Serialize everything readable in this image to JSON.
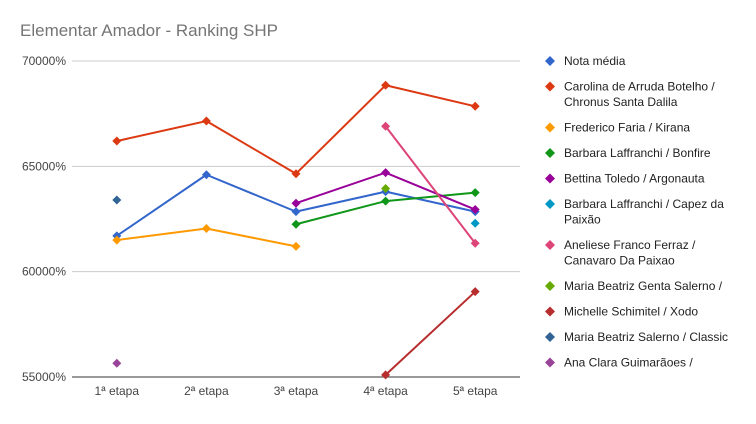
{
  "chart_data": {
    "type": "line",
    "title": "Elementar Amador - Ranking SHP",
    "xlabel": "",
    "ylabel": "",
    "categories": [
      "1ª etapa",
      "2ª etapa",
      "3ª etapa",
      "4ª etapa",
      "5ª etapa"
    ],
    "ylim": [
      55000,
      70000
    ],
    "yticks": [
      {
        "value": 70000,
        "label": "70000%"
      },
      {
        "value": 65000,
        "label": "65000%"
      },
      {
        "value": 60000,
        "label": "60000%"
      },
      {
        "value": 55000,
        "label": "55000%"
      }
    ],
    "grid": true,
    "legend_position": "right",
    "series": [
      {
        "name": "Nota média",
        "color": "#3366cc",
        "values": [
          61700,
          64600,
          62850,
          63800,
          62850
        ]
      },
      {
        "name": "Carolina de Arruda Botelho / Chronus Santa Dalila",
        "color": "#dc3912",
        "values": [
          66200,
          67150,
          64650,
          68850,
          67850
        ]
      },
      {
        "name": "Frederico Faria / Kirana",
        "color": "#ff9900",
        "values": [
          61500,
          62050,
          61200,
          null,
          null
        ]
      },
      {
        "name": "Barbara Laffranchi / Bonfire",
        "color": "#109618",
        "values": [
          null,
          null,
          62250,
          63350,
          63750
        ]
      },
      {
        "name": "Bettina Toledo / Argonauta",
        "color": "#990099",
        "values": [
          null,
          null,
          63250,
          64700,
          62950
        ]
      },
      {
        "name": "Barbara Laffranchi / Capez da Paixão",
        "color": "#0099c6",
        "values": [
          null,
          null,
          null,
          null,
          62300
        ]
      },
      {
        "name": "Aneliese Franco Ferraz / Canavaro Da Paixao",
        "color": "#dd4477",
        "values": [
          null,
          null,
          null,
          66900,
          61350
        ]
      },
      {
        "name": "Maria Beatriz Genta Salerno /",
        "color": "#66aa00",
        "values": [
          null,
          null,
          null,
          63950,
          null
        ]
      },
      {
        "name": "Michelle Schimitel / Xodo",
        "color": "#b82e2e",
        "values": [
          null,
          null,
          null,
          55100,
          59050
        ]
      },
      {
        "name": "Maria Beatriz Salerno / Classic",
        "color": "#316395",
        "values": [
          63400,
          null,
          null,
          null,
          null
        ]
      },
      {
        "name": "Ana Clara Guimarãoes /",
        "color": "#994499",
        "values": [
          55650,
          null,
          null,
          null,
          null
        ]
      }
    ],
    "legend": [
      {
        "lines": [
          "Nota média"
        ]
      },
      {
        "lines": [
          "Carolina de Arruda Botelho /",
          "Chronus Santa Dalila"
        ]
      },
      {
        "lines": [
          "Frederico Faria / Kirana"
        ]
      },
      {
        "lines": [
          "Barbara Laffranchi / Bonfire"
        ]
      },
      {
        "lines": [
          "Bettina Toledo / Argonauta"
        ]
      },
      {
        "lines": [
          "Barbara Laffranchi / Capez da",
          "Paixão"
        ]
      },
      {
        "lines": [
          "Aneliese Franco Ferraz /",
          "Canavaro Da Paixao"
        ]
      },
      {
        "lines": [
          "Maria Beatriz Genta Salerno /"
        ]
      },
      {
        "lines": [
          "Michelle Schimitel / Xodo"
        ]
      },
      {
        "lines": [
          "Maria Beatriz Salerno / Classic"
        ]
      },
      {
        "lines": [
          "Ana Clara Guimarãoes /"
        ]
      }
    ]
  }
}
